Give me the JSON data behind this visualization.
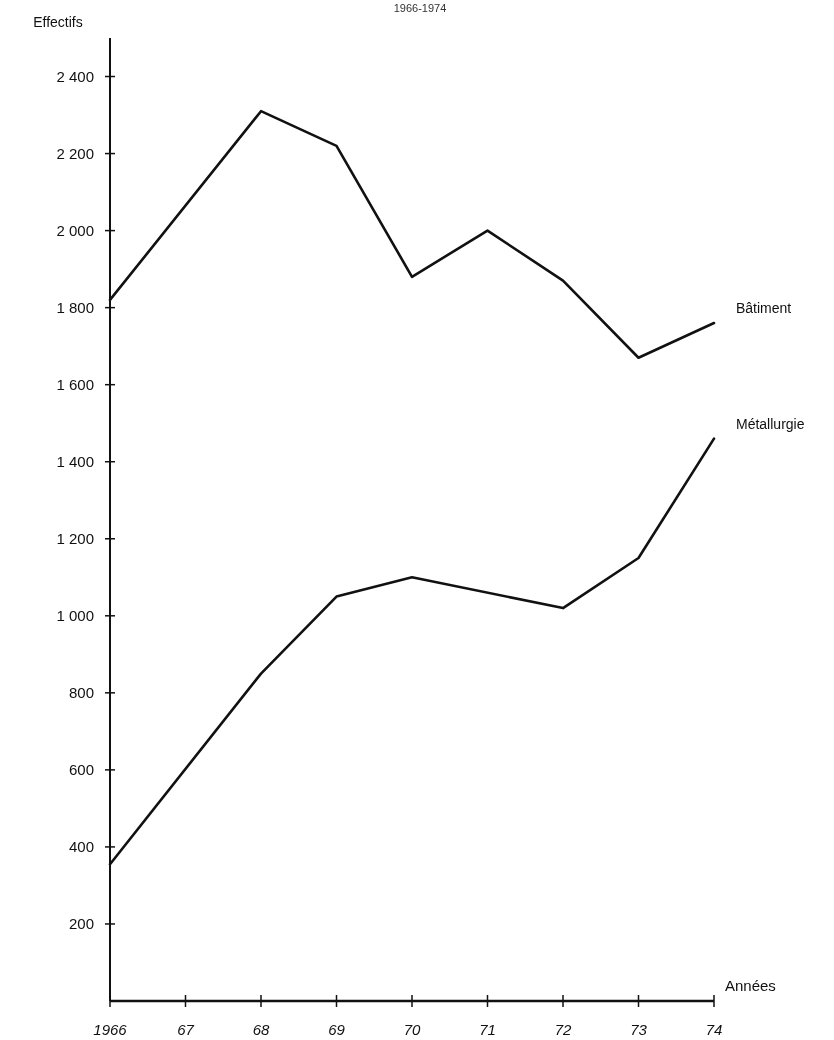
{
  "chart_data": {
    "type": "line",
    "title": "1966-1974",
    "xlabel": "Années",
    "ylabel": "Effectifs",
    "xlim": [
      1966,
      1974
    ],
    "ylim": [
      0,
      2500
    ],
    "xticks": [
      1966,
      {
        "value": 1967,
        "label": "67"
      },
      {
        "value": 1968,
        "label": "68"
      },
      {
        "value": 1969,
        "label": "69"
      },
      {
        "value": 1970,
        "label": "70"
      },
      {
        "value": 1971,
        "label": "71"
      },
      {
        "value": 1972,
        "label": "72"
      },
      {
        "value": 1973,
        "label": "73"
      },
      {
        "value": 1974,
        "label": "74"
      }
    ],
    "yticks": [
      {
        "value": 200,
        "label": "200"
      },
      {
        "value": 400,
        "label": "400"
      },
      {
        "value": 600,
        "label": "600"
      },
      {
        "value": 800,
        "label": "800"
      },
      {
        "value": 1000,
        "label": "1 000"
      },
      {
        "value": 1200,
        "label": "1 200"
      },
      {
        "value": 1400,
        "label": "1 400"
      },
      {
        "value": 1600,
        "label": "1 600"
      },
      {
        "value": 1800,
        "label": "1 800"
      },
      {
        "value": 2000,
        "label": "2 000"
      },
      {
        "value": 2200,
        "label": "2 200"
      },
      {
        "value": 2400,
        "label": "2 400"
      }
    ],
    "grid": false,
    "legend": false,
    "marker": "none",
    "line_style": "solid",
    "series": [
      {
        "name": "Bâtiment",
        "color": "#111111",
        "x": [
          1966,
          1968,
          1969,
          1970,
          1971,
          1972,
          1973,
          1974
        ],
        "values": [
          1820,
          2310,
          2220,
          1880,
          2000,
          1870,
          1670,
          1760
        ]
      },
      {
        "name": "Métallurgie",
        "color": "#111111",
        "x": [
          1966,
          1968,
          1969,
          1970,
          1972,
          1973,
          1974
        ],
        "values": [
          355,
          850,
          1050,
          1100,
          1020,
          1150,
          1460
        ]
      }
    ]
  }
}
